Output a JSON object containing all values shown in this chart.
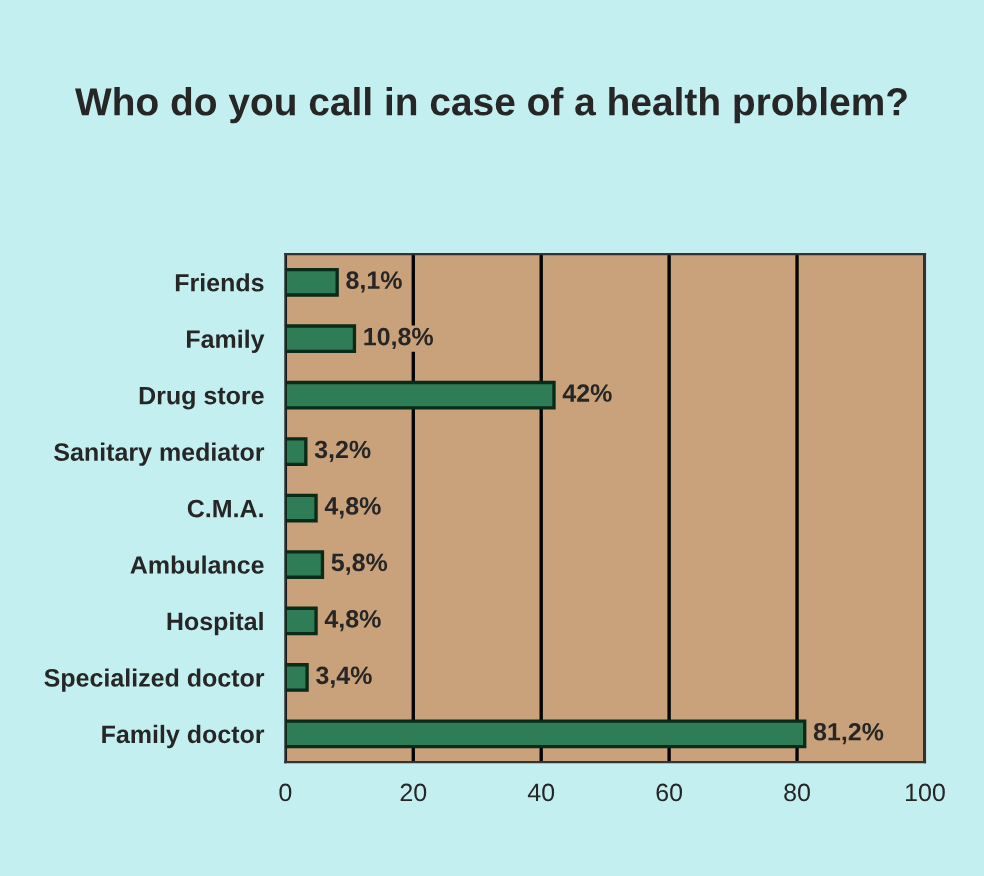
{
  "chart_data": {
    "type": "bar",
    "orientation": "horizontal",
    "title": "Who do you call in case of a health problem?",
    "categories": [
      "Friends",
      "Family",
      "Drug store",
      "Sanitary mediator",
      "C.M.A.",
      "Ambulance",
      "Hospital",
      "Specialized doctor",
      "Family doctor"
    ],
    "values": [
      8.1,
      10.8,
      42,
      3.2,
      4.8,
      5.8,
      4.8,
      3.4,
      81.2
    ],
    "value_labels": [
      "8,1%",
      "10,8%",
      "42%",
      "3,2%",
      "4,8%",
      "5,8%",
      "4,8%",
      "3,4%",
      "81,2%"
    ],
    "color": "#2e7d57",
    "xlim": [
      0,
      100
    ],
    "xticks": [
      0,
      20,
      40,
      60,
      80,
      100
    ],
    "grid": "x"
  }
}
